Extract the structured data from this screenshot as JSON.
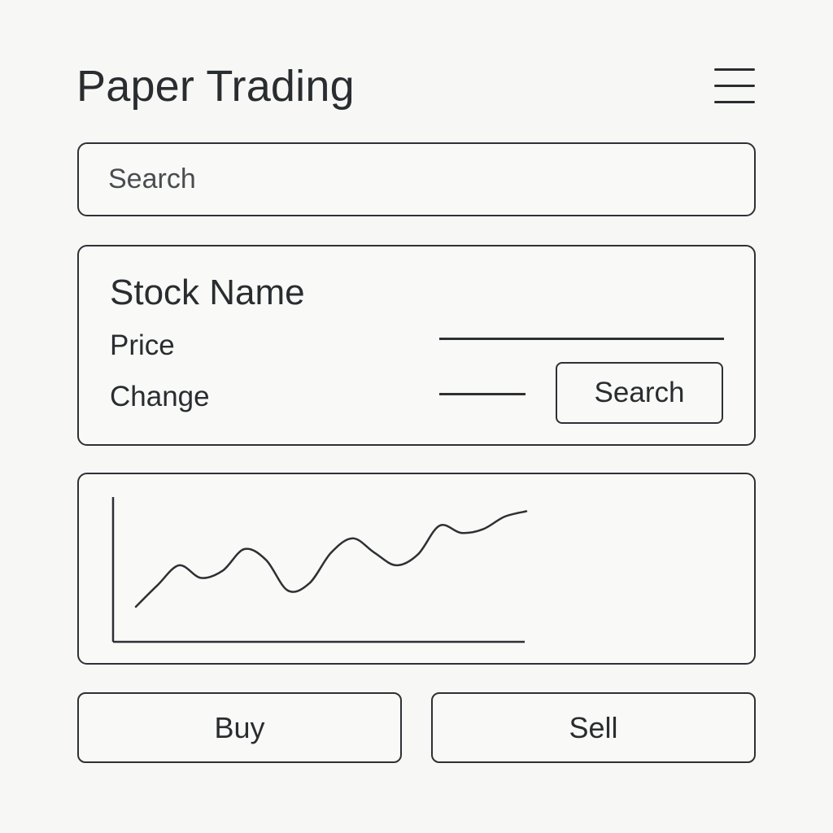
{
  "header": {
    "title": "Paper Trading",
    "menu_icon": "hamburger-menu-icon"
  },
  "search": {
    "placeholder": "Search",
    "value": ""
  },
  "stock": {
    "name_label": "Stock Name",
    "price_label": "Price",
    "change_label": "Change",
    "search_button_label": "Search"
  },
  "actions": {
    "buy_label": "Buy",
    "sell_label": "Sell"
  },
  "colors": {
    "background": "#f7f7f6",
    "stroke": "#2e3134",
    "text": "#2a2d30"
  },
  "chart_data": {
    "type": "line",
    "title": "",
    "xlabel": "",
    "ylabel": "",
    "grid": false,
    "x": [
      0,
      1,
      2,
      3,
      4,
      5,
      6,
      7,
      8,
      9,
      10,
      11,
      12,
      13,
      14,
      15,
      16,
      17,
      18
    ],
    "series": [
      {
        "values": [
          1.0,
          2.2,
          3.3,
          2.6,
          3.0,
          4.2,
          3.6,
          1.9,
          2.3,
          4.0,
          4.8,
          4.0,
          3.3,
          3.9,
          5.5,
          5.1,
          5.3,
          6.0,
          6.3
        ]
      }
    ],
    "ylim": [
      0,
      7
    ]
  }
}
